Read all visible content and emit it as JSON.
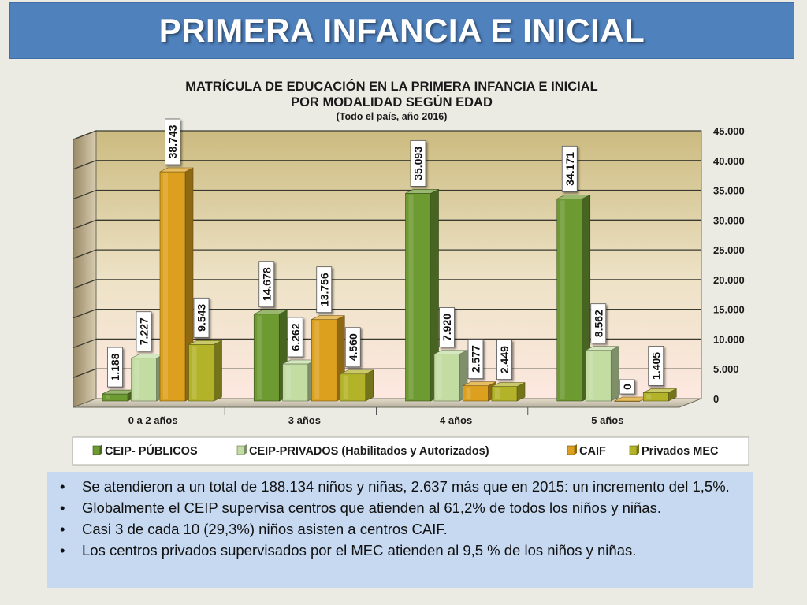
{
  "slide": {
    "title": "PRIMERA INFANCIA E INICIAL"
  },
  "chart_data": {
    "type": "bar",
    "title": "MATRÍCULA DE EDUCACIÓN EN LA PRIMERA INFANCIA E INICIAL",
    "subtitle": "POR MODALIDAD SEGÚN EDAD",
    "note": "(Todo el país, año 2016)",
    "categories": [
      "0 a 2 años",
      "3 años",
      "4 años",
      "5 años"
    ],
    "series": [
      {
        "name": "CEIP- PÚBLICOS",
        "values": [
          1188,
          14678,
          35093,
          34171
        ],
        "labels": [
          "1.188",
          "14.678",
          "35.093",
          "34.171"
        ],
        "color": "#6e9a32"
      },
      {
        "name": "CEIP-PRIVADOS (Habilitados y Autorizados)",
        "values": [
          7227,
          6262,
          7920,
          8562
        ],
        "labels": [
          "7.227",
          "6.262",
          "7.920",
          "8.562"
        ],
        "color": "#c2dca2"
      },
      {
        "name": "CAIF",
        "values": [
          38743,
          13756,
          2577,
          0
        ],
        "labels": [
          "38.743",
          "13.756",
          "2.577",
          "0"
        ],
        "color": "#dca01e"
      },
      {
        "name": "Privados MEC",
        "values": [
          9543,
          4560,
          2449,
          1405
        ],
        "labels": [
          "9.543",
          "4.560",
          "2.449",
          "1.405"
        ],
        "color": "#b3b32a"
      }
    ],
    "ylim": [
      0,
      45000
    ],
    "yticks": [
      0,
      5000,
      10000,
      15000,
      20000,
      25000,
      30000,
      35000,
      40000,
      45000
    ],
    "ytick_labels": [
      "0",
      "5.000",
      "10.000",
      "15.000",
      "20.000",
      "25.000",
      "30.000",
      "35.000",
      "40.000",
      "45.000"
    ],
    "grid": true,
    "legend_position": "bottom"
  },
  "bullets": [
    "Se atendieron a un total de 188.134 niños y niñas, 2.637 más que en 2015: un incremento del 1,5%.",
    "Globalmente el CEIP supervisa centros que atienden al 61,2% de todos los niños y niñas.",
    "Casi 3 de cada 10 (29,3%) niños asisten a centros CAIF.",
    "Los centros privados supervisados por el MEC atienden al 9,5 % de los niños y niñas."
  ]
}
